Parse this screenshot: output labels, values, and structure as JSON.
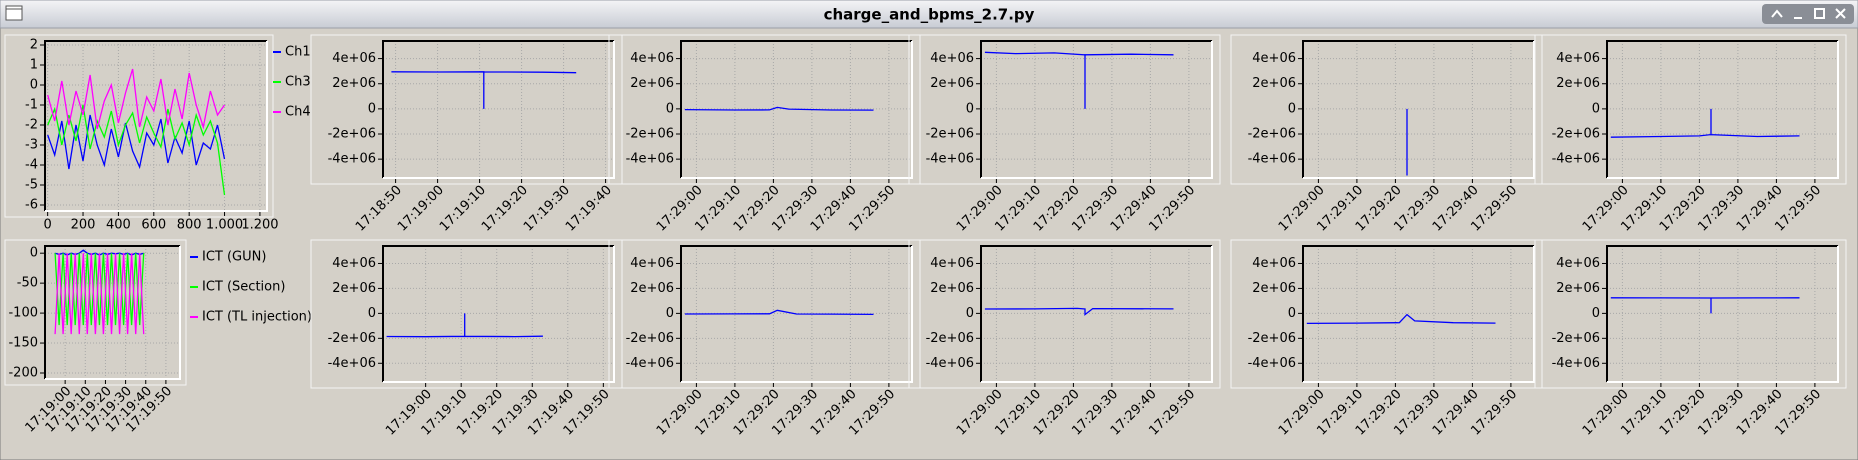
{
  "window_title": "charge_and_bpms_2.7.py",
  "chart_data": [
    {
      "type": "line",
      "x": [
        0,
        40,
        80,
        120,
        160,
        200,
        240,
        280,
        320,
        360,
        400,
        440,
        480,
        520,
        560,
        600,
        640,
        680,
        720,
        760,
        800,
        840,
        880,
        920,
        960,
        1000
      ],
      "xlim": [
        -15,
        1240
      ],
      "xticks": [
        0,
        200,
        400,
        600,
        800,
        {
          "value": 1000,
          "label": "1.000"
        },
        {
          "value": 1200,
          "label": "1.200"
        }
      ],
      "ylim": [
        -6.3,
        2.2
      ],
      "yticks": [
        -6,
        -5,
        -4,
        -3,
        -2,
        -1,
        0,
        1,
        2
      ],
      "grid": true,
      "series": [
        {
          "name": "Ch1",
          "color": "#0000ff",
          "values": [
            -2.5,
            -3.5,
            -1.8,
            -4.2,
            -2.0,
            -3.8,
            -1.5,
            -3.0,
            -4.0,
            -2.2,
            -3.6,
            -1.9,
            -3.3,
            -4.1,
            -2.4,
            -3.0,
            -1.7,
            -3.9,
            -2.6,
            -3.4,
            -1.8,
            -4.0,
            -2.9,
            -3.2,
            -2.0,
            -3.7
          ]
        },
        {
          "name": "Ch3",
          "color": "#00ff00",
          "values": [
            -2.0,
            -1.2,
            -3.0,
            -1.5,
            -2.8,
            -1.0,
            -3.2,
            -1.8,
            -2.6,
            -1.3,
            -3.0,
            -2.0,
            -1.4,
            -2.9,
            -1.6,
            -2.4,
            -3.1,
            -1.2,
            -2.7,
            -1.9,
            -3.0,
            -1.5,
            -2.5,
            -1.8,
            -2.9,
            -5.5
          ]
        },
        {
          "name": "Ch4",
          "color": "#ff00ff",
          "values": [
            -0.5,
            -1.8,
            0.2,
            -2.0,
            -0.3,
            -1.5,
            0.5,
            -2.2,
            -0.8,
            0.0,
            -1.9,
            -0.4,
            0.8,
            -2.1,
            -0.6,
            -1.3,
            0.3,
            -2.0,
            -0.2,
            -1.7,
            0.6,
            -1.0,
            -2.1,
            -0.3,
            -1.5,
            -1.0
          ]
        }
      ]
    },
    {
      "type": "line",
      "x": [
        "17:18:55",
        "17:18:57",
        "17:18:59",
        "17:19:01",
        "17:19:03",
        "17:19:05",
        "17:19:07",
        "17:19:09",
        "17:19:11",
        "17:19:13",
        "17:19:15",
        "17:19:17",
        "17:19:19",
        "17:19:21",
        "17:19:23",
        "17:19:25",
        "17:19:27",
        "17:19:29",
        "17:19:31",
        "17:19:33",
        "17:19:35",
        "17:19:37",
        "17:19:39"
      ],
      "xlim": [
        "17:18:50",
        "17:19:57"
      ],
      "xticks": [
        "17:19:00",
        "17:19:10",
        "17:19:20",
        "17:19:30",
        "17:19:40",
        "17:19:50"
      ],
      "ylim": [
        -210,
        12
      ],
      "yticks": [
        -200,
        -150,
        -100,
        -50,
        0
      ],
      "grid": true,
      "series": [
        {
          "name": "ICT (GUN)",
          "color": "#0000ff",
          "values": [
            0,
            -2,
            0,
            -3,
            0,
            -2,
            0,
            5,
            0,
            -2,
            0,
            -3,
            0,
            -2,
            0,
            -1,
            0,
            -2,
            0,
            -3,
            0,
            -2,
            0
          ]
        },
        {
          "name": "ICT (Section)",
          "color": "#00ff00",
          "values": [
            0,
            -120,
            0,
            -120,
            0,
            -120,
            0,
            -120,
            0,
            -120,
            0,
            -120,
            0,
            -120,
            0,
            -120,
            0,
            -120,
            0,
            -120,
            0,
            -120,
            0
          ]
        },
        {
          "name": "ICT (TL injection)",
          "color": "#ff00ff",
          "values": [
            -135,
            0,
            -135,
            0,
            -135,
            0,
            -135,
            0,
            -135,
            0,
            -135,
            0,
            -135,
            0,
            -135,
            0,
            -135,
            0,
            -135,
            0,
            -135,
            0,
            -135
          ]
        }
      ]
    },
    {
      "type": "line",
      "x": [
        "17:18:49",
        "17:19:00",
        "17:19:11",
        "17:19:11",
        "17:19:11",
        "17:19:25",
        "17:19:33"
      ],
      "xlim": [
        "17:18:47",
        "17:19:42"
      ],
      "xticks": [
        "17:18:50",
        "17:19:00",
        "17:19:10",
        "17:19:20",
        "17:19:30",
        "17:19:40"
      ],
      "ylim": [
        -5500000,
        5400000
      ],
      "yticks": [
        {
          "value": -4000000,
          "label": "-4e+06"
        },
        {
          "value": -2000000,
          "label": "-2e+06"
        },
        0,
        {
          "value": 2000000,
          "label": "2e+06"
        },
        {
          "value": 4000000,
          "label": "4e+06"
        }
      ],
      "grid": true,
      "series": [
        {
          "color": "#0000ff",
          "values": [
            2950000,
            2930000,
            2950000,
            0,
            2940000,
            2920000,
            2880000
          ]
        }
      ]
    },
    {
      "type": "line",
      "x": [
        "17:28:57",
        "17:29:10",
        "17:29:19",
        "17:29:21",
        "17:29:24",
        "17:29:35",
        "17:29:46"
      ],
      "xlim": [
        "17:28:56",
        "17:29:56"
      ],
      "xticks": [
        "17:29:00",
        "17:29:10",
        "17:29:20",
        "17:29:30",
        "17:29:40",
        "17:29:50"
      ],
      "ylim": [
        -5500000,
        5400000
      ],
      "yticks": [
        {
          "value": -4000000,
          "label": "-4e+06"
        },
        {
          "value": -2000000,
          "label": "-2e+06"
        },
        0,
        {
          "value": 2000000,
          "label": "2e+06"
        },
        {
          "value": 4000000,
          "label": "4e+06"
        }
      ],
      "grid": true,
      "series": [
        {
          "color": "#0000ff",
          "values": [
            -60000,
            -90000,
            -80000,
            120000,
            -20000,
            -90000,
            -100000
          ]
        }
      ]
    },
    {
      "type": "line",
      "x": [
        "17:28:57",
        "17:29:05",
        "17:29:15",
        "17:29:23",
        "17:29:23",
        "17:29:23",
        "17:29:35",
        "17:29:46"
      ],
      "xlim": [
        "17:28:56",
        "17:29:56"
      ],
      "xticks": [
        "17:29:00",
        "17:29:10",
        "17:29:20",
        "17:29:30",
        "17:29:40",
        "17:29:50"
      ],
      "ylim": [
        -5500000,
        5400000
      ],
      "yticks": [
        {
          "value": -4000000,
          "label": "-4e+06"
        },
        {
          "value": -2000000,
          "label": "-2e+06"
        },
        0,
        {
          "value": 2000000,
          "label": "2e+06"
        },
        {
          "value": 4000000,
          "label": "4e+06"
        }
      ],
      "grid": true,
      "series": [
        {
          "color": "#0000ff",
          "values": [
            4500000,
            4400000,
            4450000,
            4300000,
            0,
            4300000,
            4350000,
            4300000
          ]
        }
      ]
    },
    {
      "type": "line",
      "x": [
        "17:29:23",
        "17:29:23"
      ],
      "xlim": [
        "17:28:56",
        "17:29:56"
      ],
      "xticks": [
        "17:29:00",
        "17:29:10",
        "17:29:20",
        "17:29:30",
        "17:29:40",
        "17:29:50"
      ],
      "ylim": [
        -5500000,
        5400000
      ],
      "yticks": [
        {
          "value": -4000000,
          "label": "-4e+06"
        },
        {
          "value": -2000000,
          "label": "-2e+06"
        },
        0,
        {
          "value": 2000000,
          "label": "2e+06"
        },
        {
          "value": 4000000,
          "label": "4e+06"
        }
      ],
      "grid": true,
      "series": [
        {
          "color": "#0000ff",
          "values": [
            0,
            -5300000
          ]
        }
      ]
    },
    {
      "type": "line",
      "x": [
        "17:28:57",
        "17:29:10",
        "17:29:20",
        "17:29:23",
        "17:29:23",
        "17:29:23",
        "17:29:35",
        "17:29:46"
      ],
      "xlim": [
        "17:28:56",
        "17:29:56"
      ],
      "xticks": [
        "17:29:00",
        "17:29:10",
        "17:29:20",
        "17:29:30",
        "17:29:40",
        "17:29:50"
      ],
      "ylim": [
        -5500000,
        5400000
      ],
      "yticks": [
        {
          "value": -4000000,
          "label": "-4e+06"
        },
        {
          "value": -2000000,
          "label": "-2e+06"
        },
        0,
        {
          "value": 2000000,
          "label": "2e+06"
        },
        {
          "value": 4000000,
          "label": "4e+06"
        }
      ],
      "grid": true,
      "series": [
        {
          "color": "#0000ff",
          "values": [
            -2250000,
            -2200000,
            -2150000,
            -2050000,
            0,
            -2050000,
            -2200000,
            -2150000
          ]
        }
      ]
    },
    {
      "type": "line",
      "x": [
        "17:18:49",
        "17:19:00",
        "17:19:11",
        "17:19:11",
        "17:19:11",
        "17:19:25",
        "17:19:33"
      ],
      "xlim": [
        "17:18:48",
        "17:19:53"
      ],
      "xticks": [
        "17:19:00",
        "17:19:10",
        "17:19:20",
        "17:19:30",
        "17:19:40",
        "17:19:50"
      ],
      "ylim": [
        -5500000,
        5400000
      ],
      "yticks": [
        {
          "value": -4000000,
          "label": "-4e+06"
        },
        {
          "value": -2000000,
          "label": "-2e+06"
        },
        0,
        {
          "value": 2000000,
          "label": "2e+06"
        },
        {
          "value": 4000000,
          "label": "4e+06"
        }
      ],
      "grid": true,
      "series": [
        {
          "color": "#0000ff",
          "values": [
            -1850000,
            -1870000,
            -1840000,
            0,
            -1840000,
            -1860000,
            -1830000
          ]
        }
      ]
    },
    {
      "type": "line",
      "x": [
        "17:28:57",
        "17:29:10",
        "17:29:19",
        "17:29:21",
        "17:29:26",
        "17:29:35",
        "17:29:46"
      ],
      "xlim": [
        "17:28:56",
        "17:29:56"
      ],
      "xticks": [
        "17:29:00",
        "17:29:10",
        "17:29:20",
        "17:29:30",
        "17:29:40",
        "17:29:50"
      ],
      "ylim": [
        -5500000,
        5400000
      ],
      "yticks": [
        {
          "value": -4000000,
          "label": "-4e+06"
        },
        {
          "value": -2000000,
          "label": "-2e+06"
        },
        0,
        {
          "value": 2000000,
          "label": "2e+06"
        },
        {
          "value": 4000000,
          "label": "4e+06"
        }
      ],
      "grid": true,
      "series": [
        {
          "color": "#0000ff",
          "values": [
            -50000,
            -40000,
            -30000,
            250000,
            -50000,
            -60000,
            -80000
          ]
        }
      ]
    },
    {
      "type": "line",
      "x": [
        "17:28:57",
        "17:29:10",
        "17:29:21",
        "17:29:23",
        "17:29:23",
        "17:29:25",
        "17:29:46"
      ],
      "xlim": [
        "17:28:56",
        "17:29:56"
      ],
      "xticks": [
        "17:29:00",
        "17:29:10",
        "17:29:20",
        "17:29:30",
        "17:29:40",
        "17:29:50"
      ],
      "ylim": [
        -5500000,
        5400000
      ],
      "yticks": [
        {
          "value": -4000000,
          "label": "-4e+06"
        },
        {
          "value": -2000000,
          "label": "-2e+06"
        },
        0,
        {
          "value": 2000000,
          "label": "2e+06"
        },
        {
          "value": 4000000,
          "label": "4e+06"
        }
      ],
      "grid": true,
      "series": [
        {
          "color": "#0000ff",
          "values": [
            350000,
            360000,
            400000,
            350000,
            -100000,
            380000,
            360000
          ]
        }
      ]
    },
    {
      "type": "line",
      "x": [
        "17:28:57",
        "17:29:10",
        "17:29:21",
        "17:29:23",
        "17:29:25",
        "17:29:35",
        "17:29:46"
      ],
      "xlim": [
        "17:28:56",
        "17:29:56"
      ],
      "xticks": [
        "17:29:00",
        "17:29:10",
        "17:29:20",
        "17:29:30",
        "17:29:40",
        "17:29:50"
      ],
      "ylim": [
        -5500000,
        5400000
      ],
      "yticks": [
        {
          "value": -4000000,
          "label": "-4e+06"
        },
        {
          "value": -2000000,
          "label": "-2e+06"
        },
        0,
        {
          "value": 2000000,
          "label": "2e+06"
        },
        {
          "value": 4000000,
          "label": "4e+06"
        }
      ],
      "grid": true,
      "series": [
        {
          "color": "#0000ff",
          "values": [
            -800000,
            -780000,
            -750000,
            -100000,
            -600000,
            -750000,
            -780000
          ]
        }
      ]
    },
    {
      "type": "line",
      "x": [
        "17:28:57",
        "17:29:10",
        "17:29:23",
        "17:29:23",
        "17:29:23",
        "17:29:35",
        "17:29:46"
      ],
      "xlim": [
        "17:28:56",
        "17:29:56"
      ],
      "xticks": [
        "17:29:00",
        "17:29:10",
        "17:29:20",
        "17:29:30",
        "17:29:40",
        "17:29:50"
      ],
      "ylim": [
        -5500000,
        5400000
      ],
      "yticks": [
        {
          "value": -4000000,
          "label": "-4e+06"
        },
        {
          "value": -2000000,
          "label": "-2e+06"
        },
        0,
        {
          "value": 2000000,
          "label": "2e+06"
        },
        {
          "value": 4000000,
          "label": "4e+06"
        }
      ],
      "grid": true,
      "series": [
        {
          "color": "#0000ff",
          "values": [
            1250000,
            1240000,
            1230000,
            0,
            1230000,
            1240000,
            1250000
          ]
        }
      ]
    }
  ]
}
